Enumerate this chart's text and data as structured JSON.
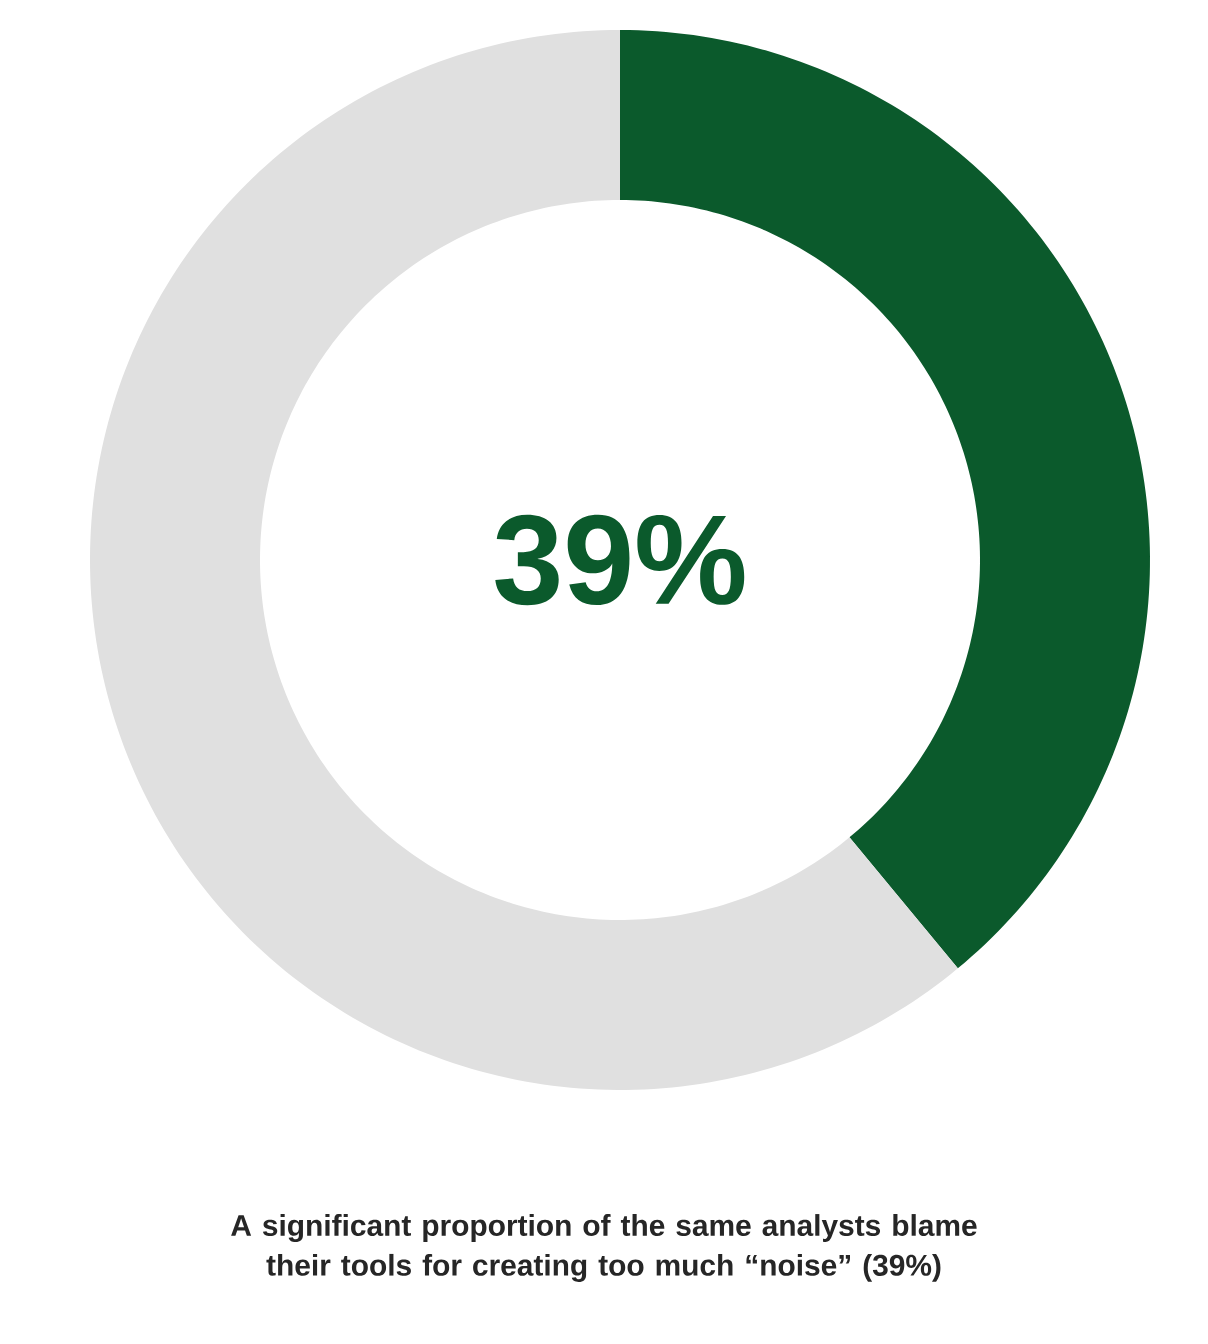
{
  "chart_data": {
    "type": "donut",
    "title": "A significant proportion of the same analysts blame their tools for creating too much “noise” (39%)",
    "categories": [
      null,
      null
    ],
    "values": [
      39,
      61
    ],
    "colors": [
      "#0b5a2c",
      "#e0e0e0"
    ],
    "annotations": [
      "39%"
    ]
  }
}
